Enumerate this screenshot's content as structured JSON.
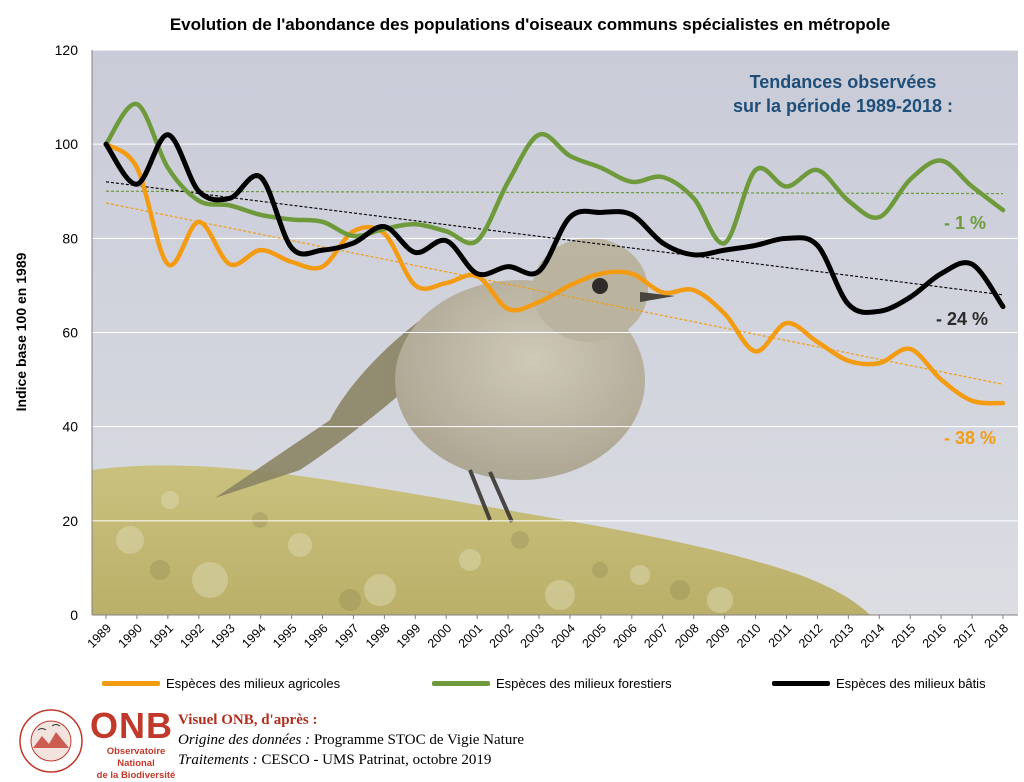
{
  "chart_data": {
    "type": "line",
    "title": "Evolution de l'abondance des populations d'oiseaux communs spécialistes en métropole",
    "ylabel": "Indice  base 100 en 1989",
    "xlabel": "",
    "ylim": [
      0,
      120
    ],
    "yticks": [
      0,
      20,
      40,
      60,
      80,
      100,
      120
    ],
    "grid": true,
    "legend_position": "bottom",
    "x": [
      "1989",
      "1990",
      "1991",
      "1992",
      "1993",
      "1994",
      "1995",
      "1996",
      "1997",
      "1998",
      "1999",
      "2000",
      "2001",
      "2002",
      "2003",
      "2004",
      "2005",
      "2006",
      "2007",
      "2008",
      "2009",
      "2010",
      "2011",
      "2012",
      "2013",
      "2014",
      "2015",
      "2016",
      "2017",
      "2018"
    ],
    "series": [
      {
        "name": "Espèces des milieux agricoles",
        "color": "#f39c12",
        "values": [
          100,
          95,
          74.5,
          83.5,
          74.5,
          77.5,
          75,
          74,
          81.5,
          81,
          70,
          70.5,
          72,
          65,
          66.5,
          70,
          72.5,
          72.5,
          68.5,
          69,
          64,
          56,
          62,
          58,
          54,
          53.5,
          56.5,
          50,
          45.5,
          45
        ],
        "trend": [
          87.5,
          49
        ]
      },
      {
        "name": "Espèces des milieux forestiers",
        "color": "#6e9a3c",
        "values": [
          100,
          108.5,
          95,
          88,
          87,
          85,
          84,
          83.5,
          80.5,
          82,
          83,
          81.5,
          79.5,
          92,
          102,
          97.5,
          95,
          92,
          93,
          88.5,
          79,
          94.5,
          91,
          94.5,
          88,
          84.5,
          92.5,
          96.5,
          91,
          86
        ],
        "trend": [
          90,
          89.5
        ]
      },
      {
        "name": "Espèces des milieux bâtis",
        "color": "#000000",
        "values": [
          100,
          91.5,
          102,
          90,
          88.5,
          93,
          78,
          77.5,
          79,
          82.5,
          77,
          79.5,
          72.5,
          74,
          73,
          84.5,
          85.5,
          85,
          79,
          76.5,
          77.5,
          78.5,
          80,
          78.5,
          66,
          64.5,
          67.5,
          72.5,
          74.5,
          65.5
        ],
        "trend": [
          92,
          68
        ]
      }
    ],
    "annotations": {
      "box_title": [
        "Tendances observées",
        "sur la période 1989-2018 :"
      ],
      "labels": [
        {
          "text": "- 1 %",
          "color": "#6e9a3c"
        },
        {
          "text": "- 24 %",
          "color": "#2b2b2b"
        },
        {
          "text": "- 38 %",
          "color": "#f39c12"
        }
      ]
    }
  },
  "footer": {
    "logo_text": "ONB",
    "logo_subtitle_1": "Observatoire National",
    "logo_subtitle_2": "de la Biodiversité",
    "logo_ring_text": "CONNAISSANCE  OBSERVATOIRES",
    "credit_head": "Visuel ONB, d'après :",
    "credit_origin_label": "Origine des données :",
    "credit_origin_value": " Programme STOC de Vigie Nature",
    "credit_proc_label": "Traitements :",
    "credit_proc_value": " CESCO  - UMS Patrinat, octobre 2019"
  }
}
